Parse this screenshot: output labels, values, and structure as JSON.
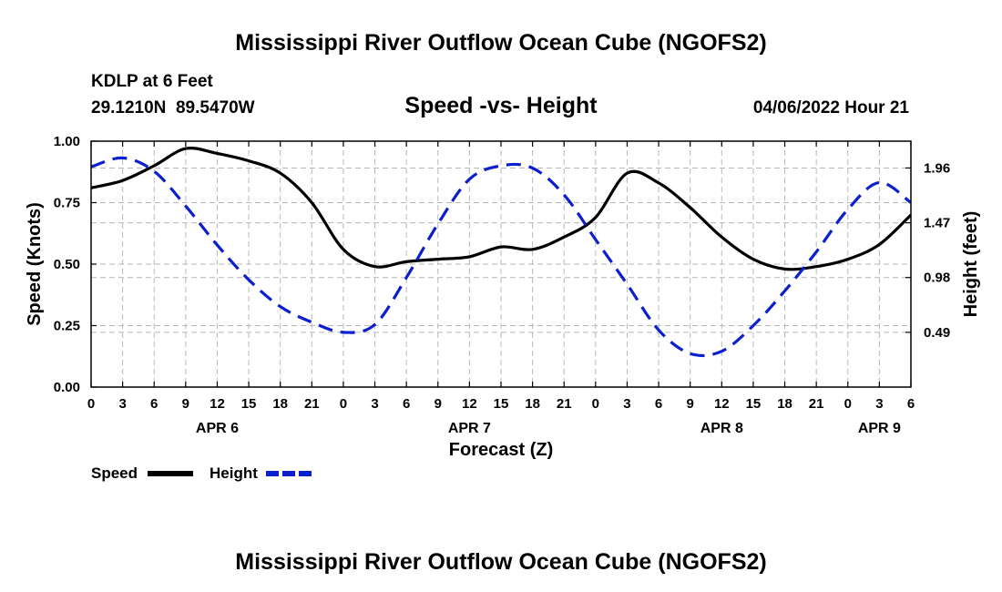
{
  "header": {
    "title": "Mississippi River Outflow Ocean Cube (NGOFS2)",
    "station": "KDLP at 6 Feet",
    "coords": "29.1210N  89.5470W",
    "subtitle": "Speed -vs- Height",
    "datetime": "04/06/2022 Hour 21"
  },
  "footer": {
    "title": "Mississippi River Outflow Ocean Cube (NGOFS2)"
  },
  "chart_data": {
    "type": "line",
    "title": "Speed -vs- Height",
    "xlabel": "Forecast (Z)",
    "ylabel": "Speed (Knots)",
    "y2label": "Height (feet)",
    "x_hours_range": [
      0,
      78
    ],
    "ylim": [
      0,
      1.0
    ],
    "y2lim": [
      0,
      2.2
    ],
    "x_tick_step_hours": 3,
    "x_tick_labels": [
      "0",
      "3",
      "6",
      "9",
      "12",
      "15",
      "18",
      "21",
      "0",
      "3",
      "6",
      "9",
      "12",
      "15",
      "18",
      "21",
      "0",
      "3",
      "6",
      "9",
      "12",
      "15",
      "18",
      "21",
      "0",
      "3",
      "6"
    ],
    "date_labels": [
      {
        "label": "APR 6",
        "hour": 12
      },
      {
        "label": "APR 7",
        "hour": 36
      },
      {
        "label": "APR 8",
        "hour": 60
      },
      {
        "label": "APR 9",
        "hour": 75
      }
    ],
    "y_ticks": [
      {
        "value": 0.0,
        "label": "0.00"
      },
      {
        "value": 0.25,
        "label": "0.25"
      },
      {
        "value": 0.5,
        "label": "0.50"
      },
      {
        "value": 0.75,
        "label": "0.75"
      },
      {
        "value": 1.0,
        "label": "1.00"
      }
    ],
    "y2_ticks": [
      {
        "value": 0.49,
        "label": "0.49"
      },
      {
        "value": 0.98,
        "label": "0.98"
      },
      {
        "value": 1.47,
        "label": "1.47"
      },
      {
        "value": 1.96,
        "label": "1.96"
      }
    ],
    "series": [
      {
        "name": "Speed",
        "axis": "left",
        "color": "#000000",
        "style": "solid",
        "hours": [
          0,
          3,
          6,
          9,
          12,
          15,
          18,
          21,
          24,
          27,
          30,
          33,
          36,
          39,
          42,
          45,
          48,
          51,
          54,
          57,
          60,
          63,
          66,
          69,
          72,
          75,
          78
        ],
        "values": [
          0.81,
          0.84,
          0.9,
          0.97,
          0.95,
          0.92,
          0.87,
          0.75,
          0.56,
          0.49,
          0.51,
          0.52,
          0.53,
          0.57,
          0.56,
          0.61,
          0.69,
          0.87,
          0.83,
          0.73,
          0.61,
          0.52,
          0.48,
          0.49,
          0.52,
          0.58,
          0.7
        ]
      },
      {
        "name": "Height",
        "axis": "right",
        "color": "#0b1fcf",
        "style": "dashed",
        "hours": [
          0,
          3,
          6,
          9,
          12,
          15,
          18,
          21,
          24,
          27,
          30,
          33,
          36,
          39,
          42,
          45,
          48,
          51,
          54,
          57,
          60,
          63,
          66,
          69,
          72,
          75,
          78
        ],
        "values": [
          1.97,
          2.05,
          1.93,
          1.62,
          1.27,
          0.96,
          0.72,
          0.58,
          0.49,
          0.56,
          0.98,
          1.46,
          1.86,
          1.98,
          1.96,
          1.72,
          1.32,
          0.92,
          0.51,
          0.3,
          0.32,
          0.55,
          0.86,
          1.21,
          1.59,
          1.83,
          1.65
        ]
      }
    ],
    "legend": {
      "position": "bottom-left",
      "items": [
        {
          "label": "Speed",
          "color": "#000000",
          "style": "solid"
        },
        {
          "label": "Height",
          "color": "#0b1fcf",
          "style": "dashed"
        }
      ]
    }
  }
}
